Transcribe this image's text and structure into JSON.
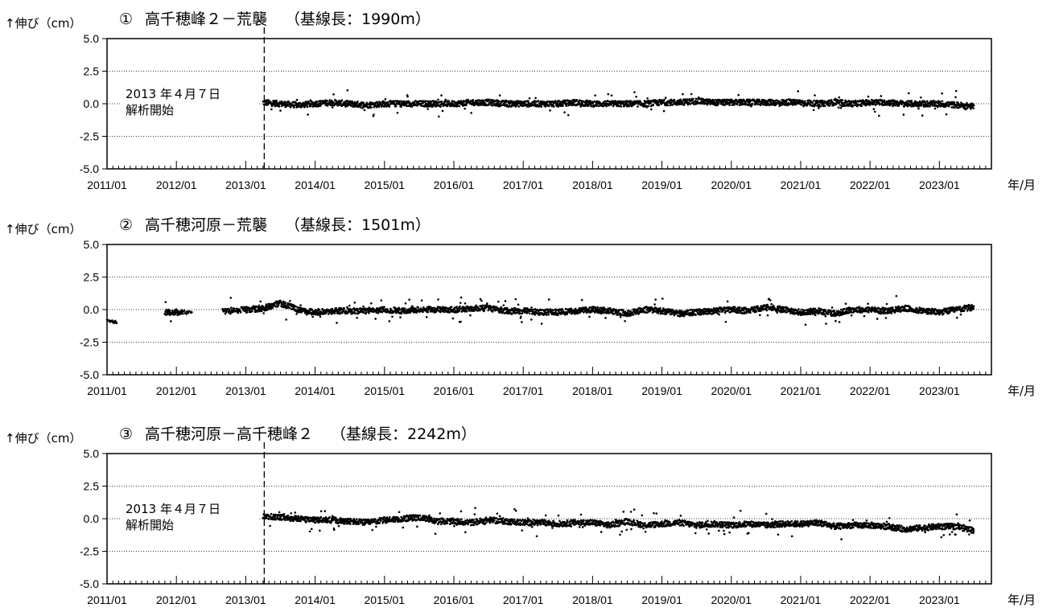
{
  "chart_data": [
    {
      "type": "scatter",
      "panel_marker": "①",
      "title": "高千穂峰２－荒襲",
      "subtitle": "（基線長：1990m）",
      "ylabel": "↑伸び（cm）",
      "xunit": "年/月",
      "ylim": [
        -5.0,
        5.0
      ],
      "yticks": [
        "5.0",
        "2.5",
        "0.0",
        "-2.5",
        "-5.0"
      ],
      "xlim": [
        "2011/01",
        "2023/09"
      ],
      "xticks": [
        "2011/01",
        "2012/01",
        "2013/01",
        "2014/01",
        "2015/01",
        "2016/01",
        "2017/01",
        "2018/01",
        "2019/01",
        "2020/01",
        "2021/01",
        "2022/01",
        "2023/01"
      ],
      "grid": "dotted horizontal at ±2.5 and 0.0",
      "event_line": "2013/04/07",
      "annotation": [
        "2013 年４月７日",
        "解析開始"
      ],
      "series": [
        {
          "x": [
            "2013/04",
            "2013/07",
            "2013/10",
            "2014/01",
            "2014/04",
            "2014/07",
            "2014/10",
            "2015/01",
            "2015/04",
            "2015/07",
            "2015/10",
            "2016/01",
            "2016/04",
            "2016/07",
            "2016/10",
            "2017/01",
            "2017/04",
            "2017/07",
            "2017/10",
            "2018/01",
            "2018/04",
            "2018/07",
            "2018/10",
            "2019/01",
            "2019/04",
            "2019/07",
            "2019/10",
            "2020/01",
            "2020/04",
            "2020/07",
            "2020/10",
            "2021/01",
            "2021/04",
            "2021/07",
            "2021/10",
            "2022/01",
            "2022/04",
            "2022/07",
            "2022/10",
            "2023/01",
            "2023/04",
            "2023/07"
          ],
          "y": [
            0.1,
            0.0,
            -0.1,
            0.0,
            0.1,
            0.0,
            -0.1,
            0.0,
            0.0,
            0.0,
            0.0,
            0.0,
            0.1,
            0.1,
            0.0,
            0.0,
            0.0,
            0.0,
            0.1,
            0.0,
            0.0,
            0.0,
            0.0,
            0.1,
            0.1,
            0.2,
            0.1,
            0.1,
            0.1,
            0.1,
            0.1,
            0.1,
            0.0,
            0.1,
            0.0,
            0.1,
            0.1,
            0.0,
            0.0,
            0.0,
            -0.1,
            -0.2
          ]
        }
      ]
    },
    {
      "type": "scatter",
      "panel_marker": "②",
      "title": "高千穂河原－荒襲",
      "subtitle": "（基線長：1501m）",
      "ylabel": "↑伸び（cm）",
      "xunit": "年/月",
      "ylim": [
        -5.0,
        5.0
      ],
      "yticks": [
        "5.0",
        "2.5",
        "0.0",
        "-2.5",
        "-5.0"
      ],
      "xlim": [
        "2011/01",
        "2023/09"
      ],
      "xticks": [
        "2011/01",
        "2012/01",
        "2013/01",
        "2014/01",
        "2015/01",
        "2016/01",
        "2017/01",
        "2018/01",
        "2019/01",
        "2020/01",
        "2021/01",
        "2022/01",
        "2023/01"
      ],
      "grid": "dotted horizontal at ±2.5 and 0.0",
      "series": [
        {
          "x": [
            "2011/01",
            "2011/11",
            "2012/02",
            "2012/09",
            "2013/01",
            "2013/04",
            "2013/07",
            "2013/10",
            "2014/01",
            "2014/04",
            "2014/07",
            "2014/10",
            "2015/01",
            "2015/04",
            "2015/07",
            "2015/10",
            "2016/01",
            "2016/04",
            "2016/07",
            "2016/10",
            "2017/01",
            "2017/04",
            "2017/07",
            "2017/10",
            "2018/01",
            "2018/04",
            "2018/07",
            "2018/10",
            "2019/01",
            "2019/04",
            "2019/07",
            "2019/10",
            "2020/01",
            "2020/04",
            "2020/07",
            "2020/10",
            "2021/01",
            "2021/04",
            "2021/07",
            "2021/10",
            "2022/01",
            "2022/04",
            "2022/07",
            "2022/10",
            "2023/01",
            "2023/04",
            "2023/07"
          ],
          "y": [
            -0.9,
            -0.2,
            -0.2,
            -0.1,
            0.0,
            0.1,
            0.5,
            0.0,
            -0.2,
            -0.1,
            -0.1,
            -0.1,
            0.0,
            -0.1,
            0.0,
            0.0,
            0.0,
            0.1,
            0.1,
            -0.1,
            -0.1,
            -0.2,
            -0.2,
            -0.1,
            0.0,
            -0.1,
            -0.3,
            0.0,
            -0.1,
            -0.3,
            -0.2,
            -0.1,
            0.0,
            -0.1,
            0.2,
            0.0,
            -0.2,
            -0.1,
            -0.3,
            0.0,
            0.0,
            -0.1,
            0.1,
            -0.1,
            -0.2,
            0.0,
            0.2
          ]
        }
      ]
    },
    {
      "type": "scatter",
      "panel_marker": "③",
      "title": "高千穂河原－高千穂峰２",
      "subtitle": "（基線長：2242m）",
      "ylabel": "↑伸び（cm）",
      "xunit": "年/月",
      "ylim": [
        -5.0,
        5.0
      ],
      "yticks": [
        "5.0",
        "2.5",
        "0.0",
        "-2.5",
        "-5.0"
      ],
      "xlim": [
        "2011/01",
        "2023/09"
      ],
      "xticks": [
        "2011/01",
        "2012/01",
        "2013/01",
        "2014/01",
        "2015/01",
        "2016/01",
        "2017/01",
        "2018/01",
        "2019/01",
        "2020/01",
        "2021/01",
        "2022/01",
        "2023/01"
      ],
      "grid": "dotted horizontal at ±2.5 and 0.0",
      "event_line": "2013/04/07",
      "annotation": [
        "2013 年４月７日",
        "解析開始"
      ],
      "series": [
        {
          "x": [
            "2013/04",
            "2013/07",
            "2013/10",
            "2014/01",
            "2014/04",
            "2014/07",
            "2014/10",
            "2015/01",
            "2015/04",
            "2015/07",
            "2015/10",
            "2016/01",
            "2016/04",
            "2016/07",
            "2016/10",
            "2017/01",
            "2017/04",
            "2017/07",
            "2017/10",
            "2018/01",
            "2018/04",
            "2018/07",
            "2018/10",
            "2019/01",
            "2019/04",
            "2019/07",
            "2019/10",
            "2020/01",
            "2020/04",
            "2020/07",
            "2020/10",
            "2021/01",
            "2021/04",
            "2021/07",
            "2021/10",
            "2022/01",
            "2022/04",
            "2022/07",
            "2022/10",
            "2023/01",
            "2023/04",
            "2023/07"
          ],
          "y": [
            0.2,
            0.1,
            0.0,
            -0.1,
            -0.1,
            -0.2,
            -0.3,
            -0.1,
            0.0,
            0.1,
            -0.2,
            -0.2,
            -0.3,
            -0.1,
            -0.2,
            -0.3,
            -0.3,
            -0.4,
            -0.3,
            -0.3,
            -0.5,
            -0.2,
            -0.5,
            -0.4,
            -0.3,
            -0.5,
            -0.4,
            -0.5,
            -0.4,
            -0.5,
            -0.4,
            -0.4,
            -0.3,
            -0.6,
            -0.5,
            -0.5,
            -0.6,
            -0.8,
            -0.7,
            -0.6,
            -0.6,
            -0.9
          ]
        }
      ]
    }
  ]
}
